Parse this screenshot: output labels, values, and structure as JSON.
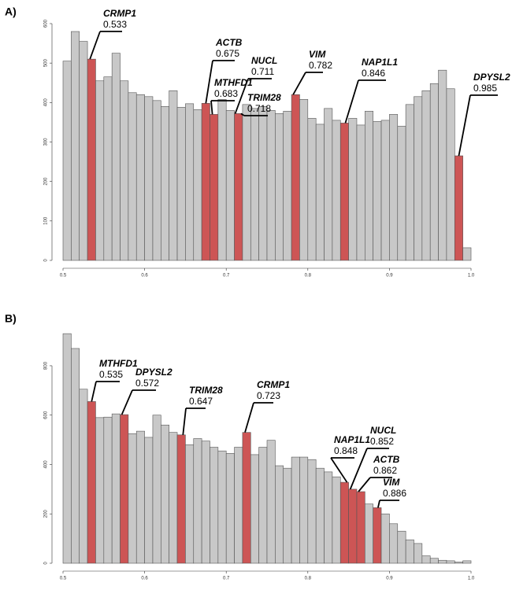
{
  "chart_data": [
    {
      "type": "histogram",
      "label": "A)",
      "bins": [
        0.5,
        0.51,
        0.52,
        0.53,
        0.54,
        0.55,
        0.56,
        0.57,
        0.58,
        0.59,
        0.6,
        0.61,
        0.62,
        0.63,
        0.64,
        0.65,
        0.66,
        0.67,
        0.68,
        0.69,
        0.7,
        0.71,
        0.72,
        0.73,
        0.74,
        0.75,
        0.76,
        0.77,
        0.78,
        0.79,
        0.8,
        0.81,
        0.82,
        0.83,
        0.84,
        0.85,
        0.86,
        0.87,
        0.88,
        0.89,
        0.9,
        0.91,
        0.92,
        0.93,
        0.94,
        0.95,
        0.96,
        0.97,
        0.98,
        0.99,
        1
      ],
      "values": [
        505,
        580,
        555,
        510,
        455,
        465,
        525,
        455,
        425,
        420,
        415,
        405,
        390,
        430,
        388,
        397,
        382,
        398,
        370,
        408,
        380,
        372,
        395,
        385,
        390,
        380,
        372,
        378,
        420,
        408,
        360,
        345,
        385,
        355,
        348,
        360,
        343,
        378,
        352,
        355,
        370,
        340,
        395,
        415,
        430,
        448,
        482,
        435,
        265,
        32
      ],
      "color": "#c8c8c8",
      "highlight_color": "#cd5555",
      "annotations": [
        {
          "text": "CRMP1",
          "value": 0.533
        },
        {
          "text": "ACTB",
          "value": 0.675
        },
        {
          "text": "MTHFD1",
          "value": 0.683
        },
        {
          "text": "NUCL",
          "value": 0.711
        },
        {
          "text": "TRIM28",
          "value": 0.718
        },
        {
          "text": "VIM",
          "value": 0.782
        },
        {
          "text": "NAP1L1",
          "value": 0.846
        },
        {
          "text": "DPYSL2",
          "value": 0.985
        }
      ],
      "xlim": [
        0.5,
        1
      ],
      "xticks": [
        0.5,
        0.6,
        0.7,
        0.8,
        0.9,
        {
          "value": 1,
          "label": "1.0"
        }
      ],
      "ylim": [
        0,
        600
      ],
      "yticks": [
        0,
        100,
        200,
        300,
        400,
        500,
        600
      ]
    },
    {
      "type": "histogram",
      "label": "B)",
      "bins": [
        0.5,
        0.51,
        0.52,
        0.53,
        0.54,
        0.55,
        0.56,
        0.57,
        0.58,
        0.59,
        0.6,
        0.61,
        0.62,
        0.63,
        0.64,
        0.65,
        0.66,
        0.67,
        0.68,
        0.69,
        0.7,
        0.71,
        0.72,
        0.73,
        0.74,
        0.75,
        0.76,
        0.77,
        0.78,
        0.79,
        0.8,
        0.81,
        0.82,
        0.83,
        0.84,
        0.85,
        0.86,
        0.87,
        0.88,
        0.89,
        0.9,
        0.91,
        0.92,
        0.93,
        0.94,
        0.95,
        0.96,
        0.97,
        0.98,
        0.99,
        1
      ],
      "values": [
        930,
        870,
        705,
        655,
        590,
        592,
        605,
        602,
        525,
        535,
        510,
        600,
        560,
        530,
        520,
        480,
        505,
        495,
        470,
        455,
        445,
        470,
        530,
        440,
        470,
        498,
        395,
        385,
        430,
        430,
        420,
        385,
        370,
        350,
        328,
        300,
        290,
        240,
        225,
        200,
        160,
        130,
        95,
        80,
        30,
        20,
        12,
        10,
        5,
        10
      ],
      "color": "#c8c8c8",
      "highlight_color": "#cd5555",
      "annotations": [
        {
          "text": "MTHFD1",
          "value": 0.535
        },
        {
          "text": "DPYSL2",
          "value": 0.572
        },
        {
          "text": "TRIM28",
          "value": 0.647
        },
        {
          "text": "CRMP1",
          "value": 0.723
        },
        {
          "text": "NAP1L1",
          "value": 0.848
        },
        {
          "text": "NUCL",
          "value": 0.852
        },
        {
          "text": "ACTB",
          "value": 0.862
        },
        {
          "text": "VIM",
          "value": 0.886
        }
      ],
      "xlim": [
        0.5,
        1
      ],
      "xticks": [
        0.5,
        0.6,
        0.7,
        0.8,
        0.9,
        {
          "value": 1,
          "label": "1.0"
        }
      ],
      "ylim": [
        0,
        940
      ],
      "yticks": [
        0,
        200,
        400,
        600,
        800
      ]
    }
  ]
}
